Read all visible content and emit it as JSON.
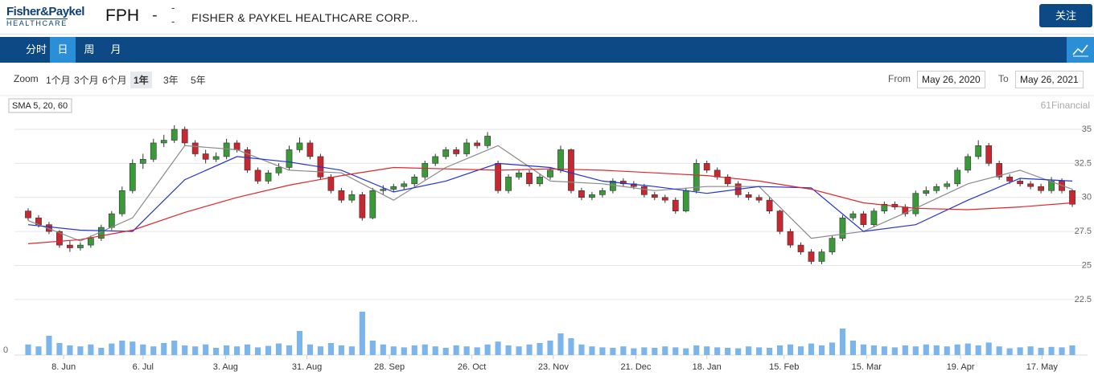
{
  "header": {
    "logo_top": "Fisher&Paykel",
    "logo_bottom": "HEALTHCARE",
    "symbol": "FPH",
    "change": "-",
    "price_top": "-",
    "price_bottom": "-",
    "name": "FISHER & PAYKEL HEALTHCARE CORP...",
    "follow": "关注"
  },
  "tabs": {
    "items": [
      "分时",
      "日",
      "周",
      "月"
    ],
    "active": 1
  },
  "toolbar": {
    "zoom_label": "Zoom",
    "zoom": [
      "1个月",
      "3个月",
      "6个月",
      "1年",
      "3年",
      "5年"
    ],
    "zoom_active": 3,
    "from_label": "From",
    "from": "May 26, 2020",
    "to_label": "To",
    "to": "May 26, 2021"
  },
  "chart_data": {
    "type": "candlestick",
    "legend": "SMA 5, 20, 60",
    "credit": "61Financial",
    "up_color": "#3a9a3a",
    "down_color": "#c8272f",
    "volume_color": "#7cb5ec",
    "grid": true,
    "ylim": [
      22.2,
      37.3
    ],
    "yticks": [
      22.5,
      25,
      27.5,
      30,
      32.5,
      35
    ],
    "volume_ylim": [
      0,
      100
    ],
    "volume_yticks": [
      0
    ],
    "xlim": [
      -1,
      101
    ],
    "xticks": [
      {
        "value": 3.4,
        "label": "8. Jun"
      },
      {
        "value": 11.0,
        "label": "6. Jul"
      },
      {
        "value": 18.9,
        "label": "3. Aug"
      },
      {
        "value": 26.7,
        "label": "31. Aug"
      },
      {
        "value": 34.6,
        "label": "28. Sep"
      },
      {
        "value": 42.5,
        "label": "26. Oct"
      },
      {
        "value": 50.3,
        "label": "23. Nov"
      },
      {
        "value": 58.2,
        "label": "21. Dec"
      },
      {
        "value": 65.0,
        "label": "18. Jan"
      },
      {
        "value": 72.4,
        "label": "15. Feb"
      },
      {
        "value": 80.3,
        "label": "15. Mar"
      },
      {
        "value": 89.3,
        "label": "19. Apr"
      },
      {
        "value": 97.1,
        "label": "17. May"
      }
    ],
    "ohlc": [
      [
        29.0,
        29.2,
        28.3,
        28.5
      ],
      [
        28.5,
        28.7,
        27.8,
        28.0
      ],
      [
        28.0,
        28.2,
        27.3,
        27.5
      ],
      [
        27.5,
        27.6,
        26.3,
        26.5
      ],
      [
        26.5,
        26.8,
        26.0,
        26.3
      ],
      [
        26.3,
        26.7,
        26.1,
        26.5
      ],
      [
        26.5,
        27.2,
        26.3,
        27.0
      ],
      [
        27.0,
        28.0,
        26.8,
        27.8
      ],
      [
        27.8,
        29.0,
        27.6,
        28.8
      ],
      [
        28.8,
        30.8,
        28.6,
        30.5
      ],
      [
        30.5,
        32.8,
        30.3,
        32.5
      ],
      [
        32.5,
        33.2,
        32.1,
        32.8
      ],
      [
        32.8,
        34.3,
        32.6,
        34.0
      ],
      [
        34.0,
        34.6,
        33.7,
        34.2
      ],
      [
        34.2,
        35.3,
        34.0,
        35.0
      ],
      [
        35.0,
        35.2,
        33.8,
        34.0
      ],
      [
        34.0,
        34.2,
        33.0,
        33.2
      ],
      [
        33.2,
        33.5,
        32.5,
        32.8
      ],
      [
        32.8,
        33.3,
        32.6,
        33.0
      ],
      [
        33.0,
        34.3,
        32.8,
        34.0
      ],
      [
        34.0,
        34.2,
        33.3,
        33.5
      ],
      [
        33.5,
        33.7,
        31.8,
        32.0
      ],
      [
        32.0,
        32.2,
        31.0,
        31.2
      ],
      [
        31.2,
        32.0,
        31.0,
        31.8
      ],
      [
        31.8,
        32.5,
        31.6,
        32.2
      ],
      [
        32.2,
        33.8,
        32.0,
        33.5
      ],
      [
        33.5,
        34.4,
        33.3,
        34.0
      ],
      [
        34.0,
        34.2,
        32.8,
        33.0
      ],
      [
        33.0,
        33.2,
        31.3,
        31.5
      ],
      [
        31.5,
        31.7,
        30.3,
        30.5
      ],
      [
        30.5,
        30.7,
        29.6,
        29.8
      ],
      [
        29.8,
        30.5,
        29.6,
        30.2
      ],
      [
        30.2,
        30.4,
        28.3,
        28.5
      ],
      [
        28.5,
        30.7,
        28.4,
        30.5
      ],
      [
        30.5,
        30.9,
        30.2,
        30.6
      ],
      [
        30.6,
        31.0,
        30.4,
        30.8
      ],
      [
        30.8,
        31.2,
        30.6,
        31.0
      ],
      [
        31.0,
        31.7,
        30.8,
        31.5
      ],
      [
        31.5,
        32.7,
        31.3,
        32.5
      ],
      [
        32.5,
        33.2,
        32.3,
        33.0
      ],
      [
        33.0,
        33.7,
        32.8,
        33.5
      ],
      [
        33.5,
        33.7,
        33.0,
        33.2
      ],
      [
        33.2,
        34.3,
        33.0,
        34.0
      ],
      [
        34.0,
        34.2,
        33.6,
        33.8
      ],
      [
        33.8,
        34.8,
        33.6,
        34.5
      ],
      [
        32.5,
        32.7,
        30.3,
        30.5
      ],
      [
        30.5,
        31.7,
        30.3,
        31.5
      ],
      [
        31.5,
        32.0,
        31.3,
        31.8
      ],
      [
        31.8,
        32.0,
        30.8,
        31.0
      ],
      [
        31.0,
        31.7,
        30.8,
        31.5
      ],
      [
        31.5,
        32.2,
        31.3,
        32.0
      ],
      [
        32.0,
        33.8,
        31.8,
        33.5
      ],
      [
        33.5,
        33.6,
        30.3,
        30.5
      ],
      [
        30.5,
        30.7,
        29.8,
        30.0
      ],
      [
        30.0,
        30.4,
        29.8,
        30.2
      ],
      [
        30.2,
        30.7,
        30.0,
        30.5
      ],
      [
        30.5,
        31.4,
        30.3,
        31.2
      ],
      [
        31.2,
        31.4,
        30.8,
        31.0
      ],
      [
        31.0,
        31.2,
        30.6,
        30.8
      ],
      [
        30.8,
        31.0,
        30.0,
        30.2
      ],
      [
        30.2,
        30.4,
        29.8,
        30.0
      ],
      [
        30.0,
        30.2,
        29.6,
        29.8
      ],
      [
        29.8,
        30.0,
        28.8,
        29.0
      ],
      [
        29.0,
        30.7,
        28.9,
        30.5
      ],
      [
        30.5,
        32.8,
        30.3,
        32.5
      ],
      [
        32.5,
        32.7,
        31.8,
        32.0
      ],
      [
        32.0,
        32.2,
        31.3,
        31.5
      ],
      [
        31.5,
        31.7,
        30.8,
        31.0
      ],
      [
        31.0,
        31.2,
        30.0,
        30.2
      ],
      [
        30.2,
        30.4,
        29.8,
        30.0
      ],
      [
        30.0,
        30.2,
        29.6,
        29.8
      ],
      [
        29.8,
        30.0,
        28.8,
        29.0
      ],
      [
        29.0,
        29.1,
        27.3,
        27.5
      ],
      [
        27.5,
        27.7,
        26.3,
        26.5
      ],
      [
        26.5,
        26.7,
        25.8,
        26.0
      ],
      [
        26.0,
        26.2,
        25.1,
        25.3
      ],
      [
        25.3,
        26.2,
        25.1,
        26.0
      ],
      [
        26.0,
        27.2,
        25.8,
        27.0
      ],
      [
        27.0,
        28.7,
        26.8,
        28.5
      ],
      [
        28.5,
        29.0,
        28.3,
        28.8
      ],
      [
        28.8,
        29.0,
        27.8,
        28.0
      ],
      [
        28.0,
        29.2,
        27.8,
        29.0
      ],
      [
        29.0,
        29.7,
        28.8,
        29.5
      ],
      [
        29.5,
        29.7,
        29.1,
        29.3
      ],
      [
        29.3,
        29.5,
        28.6,
        28.8
      ],
      [
        28.8,
        30.5,
        28.6,
        30.3
      ],
      [
        30.3,
        30.8,
        30.1,
        30.5
      ],
      [
        30.5,
        31.0,
        30.3,
        30.8
      ],
      [
        30.8,
        31.2,
        30.6,
        31.0
      ],
      [
        31.0,
        32.2,
        30.8,
        32.0
      ],
      [
        32.0,
        33.2,
        31.8,
        33.0
      ],
      [
        33.0,
        34.2,
        32.8,
        33.8
      ],
      [
        33.8,
        34.0,
        32.3,
        32.5
      ],
      [
        32.5,
        32.7,
        31.3,
        31.5
      ],
      [
        31.5,
        31.7,
        31.0,
        31.2
      ],
      [
        31.2,
        31.4,
        30.8,
        31.0
      ],
      [
        31.0,
        31.2,
        30.6,
        30.8
      ],
      [
        30.8,
        31.0,
        30.3,
        30.5
      ],
      [
        30.5,
        31.5,
        30.3,
        31.2
      ],
      [
        31.2,
        31.4,
        30.3,
        30.5
      ],
      [
        30.5,
        30.6,
        29.3,
        29.5
      ]
    ],
    "volume": [
      22,
      18,
      40,
      25,
      20,
      18,
      22,
      15,
      24,
      30,
      28,
      22,
      18,
      25,
      30,
      20,
      18,
      22,
      15,
      20,
      18,
      22,
      16,
      19,
      24,
      20,
      50,
      22,
      18,
      25,
      20,
      18,
      90,
      30,
      22,
      18,
      16,
      20,
      22,
      18,
      15,
      20,
      18,
      16,
      22,
      28,
      20,
      18,
      22,
      25,
      30,
      45,
      35,
      22,
      18,
      16,
      15,
      18,
      14,
      16,
      15,
      18,
      16,
      14,
      20,
      18,
      16,
      15,
      14,
      18,
      16,
      15,
      20,
      22,
      18,
      24,
      20,
      26,
      55,
      30,
      22,
      20,
      18,
      16,
      20,
      18,
      22,
      20,
      18,
      22,
      24,
      20,
      26,
      18,
      14,
      16,
      18,
      15,
      17,
      16,
      20
    ],
    "sma_x": [
      0,
      5,
      10,
      15,
      20,
      25,
      30,
      35,
      40,
      45,
      50,
      55,
      60,
      65,
      70,
      75,
      80,
      85,
      90,
      95,
      100
    ],
    "sma": [
      {
        "color": "#8a8a8a",
        "values": [
          28.3,
          26.8,
          28.5,
          33.8,
          33.5,
          32.0,
          31.8,
          29.8,
          32.2,
          33.8,
          31.2,
          31.0,
          30.5,
          30.8,
          30.8,
          27.0,
          27.5,
          29.2,
          31.0,
          32.0,
          30.6
        ]
      },
      {
        "color": "#2332d6",
        "values": [
          28.0,
          27.6,
          27.5,
          31.3,
          33.0,
          32.6,
          32.0,
          30.4,
          31.2,
          32.5,
          32.2,
          31.2,
          30.8,
          30.3,
          30.8,
          30.7,
          27.5,
          28.0,
          29.8,
          31.4,
          31.2
        ]
      },
      {
        "color": "#e0262b",
        "values": [
          26.6,
          26.9,
          27.6,
          28.9,
          30.0,
          30.9,
          31.6,
          32.2,
          32.1,
          32.0,
          32.1,
          32.0,
          31.8,
          31.6,
          31.2,
          30.6,
          29.6,
          29.2,
          29.1,
          29.3,
          29.6
        ]
      }
    ]
  }
}
